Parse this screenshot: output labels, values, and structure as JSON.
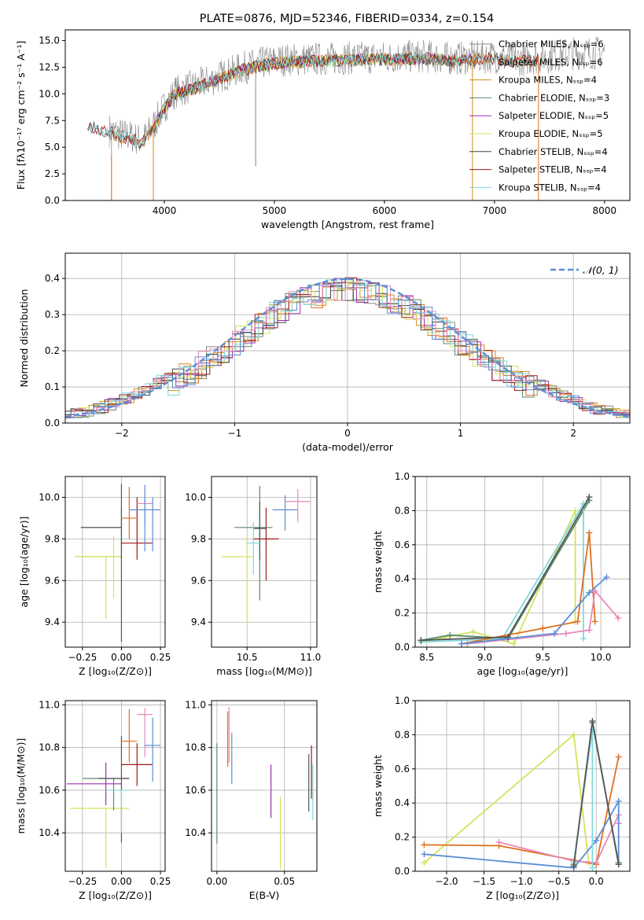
{
  "figure_title": "PLATE=0876, MJD=52346, FIBERID=0334, z=0.154",
  "colors": {
    "Chabrier MILES": "#888888",
    "Salpeter MILES": "#e07020",
    "Kroupa MILES": "#d58a1a",
    "Chabrier ELODIE": "#5a8a6a",
    "Salpeter ELODIE": "#9b30b0",
    "Kroupa ELODIE": "#d4e35a",
    "Chabrier STELIB": "#444444",
    "Salpeter STELIB": "#a01818",
    "Kroupa STELIB": "#7fd8dd",
    "gaussian": "#5b8ed6",
    "blue": "#5b8ed6",
    "orange": "#e07020",
    "pink": "#e889b8",
    "green": "#5a8a6a",
    "lime": "#d4e35a",
    "cyan": "#7fd8dd",
    "gray": "#555555"
  },
  "chart_data": [
    {
      "type": "line",
      "title": "PLATE=0876, MJD=52346, FIBERID=0334, z=0.154",
      "xlabel": "wavelength [Angstrom, rest frame]",
      "ylabel": "Flux [fλ10⁻¹⁷ erg cm⁻² s⁻¹ A⁻¹]",
      "xlim": [
        3100,
        8230
      ],
      "ylim": [
        0,
        16
      ],
      "xticks": [
        4000,
        5000,
        6000,
        7000,
        8000
      ],
      "yticks": [
        0.0,
        2.5,
        5.0,
        7.5,
        10.0,
        12.5,
        15.0
      ],
      "ytick_labels": [
        "0.0",
        "2.5",
        "5.0",
        "7.5",
        "10.0",
        "12.5",
        "15.0"
      ],
      "legend_position": "right",
      "legend": [
        "Chabrier MILES, Nₛₛₚ=6",
        "Salpeter MILES, Nₛₛₚ=6",
        "Kroupa MILES, Nₛₛₚ=4",
        "Chabrier ELODIE, Nₛₛₚ=3",
        "Salpeter ELODIE, Nₛₛₚ=5",
        "Kroupa ELODIE, Nₛₛₚ=5",
        "Chabrier STELIB, Nₛₛₚ=4",
        "Salpeter STELIB, Nₛₛₚ=4",
        "Kroupa STELIB, Nₛₛₚ=4"
      ],
      "series": [
        {
          "color_key": "Chabrier MILES",
          "range": [
            3500,
            8000
          ]
        },
        {
          "color_key": "Salpeter MILES",
          "range": [
            3520,
            7400
          ]
        },
        {
          "color_key": "Kroupa MILES",
          "range": [
            3900,
            6800
          ]
        },
        {
          "color_key": "Chabrier ELODIE",
          "range": [
            3900,
            6800
          ]
        },
        {
          "color_key": "Salpeter ELODIE",
          "range": [
            3900,
            6800
          ]
        },
        {
          "color_key": "Kroupa ELODIE",
          "range": [
            3900,
            6800
          ]
        },
        {
          "color_key": "Chabrier STELIB",
          "range": [
            3300,
            7400
          ]
        },
        {
          "color_key": "Salpeter STELIB",
          "range": [
            3300,
            7400
          ]
        },
        {
          "color_key": "Kroupa STELIB",
          "range": [
            3300,
            7400
          ]
        }
      ],
      "continuum": [
        [
          3300,
          7.2
        ],
        [
          3500,
          6.6
        ],
        [
          3600,
          6.2
        ],
        [
          3700,
          6.0
        ],
        [
          3800,
          5.6
        ],
        [
          3900,
          7.0
        ],
        [
          4000,
          8.8
        ],
        [
          4100,
          10.2
        ],
        [
          4300,
          10.8
        ],
        [
          4500,
          11.6
        ],
        [
          4700,
          12.4
        ],
        [
          4900,
          12.9
        ],
        [
          5100,
          13.2
        ],
        [
          5500,
          13.3
        ],
        [
          5800,
          13.4
        ],
        [
          6000,
          13.4
        ],
        [
          6200,
          13.5
        ],
        [
          6400,
          13.5
        ],
        [
          6600,
          13.3
        ],
        [
          6800,
          13.4
        ],
        [
          7000,
          13.5
        ],
        [
          7200,
          13.2
        ],
        [
          7400,
          13.4
        ],
        [
          7700,
          13.8
        ],
        [
          8000,
          13.9
        ]
      ]
    },
    {
      "type": "step",
      "xlabel": "(data-model)/error",
      "ylabel": "Normed distribution",
      "xlim": [
        -2.5,
        2.5
      ],
      "ylim": [
        0,
        0.47
      ],
      "xticks": [
        -2,
        -1,
        0,
        1,
        2
      ],
      "xtick_labels": [
        "−2",
        "−1",
        "0",
        "1",
        "2"
      ],
      "yticks": [
        0.0,
        0.1,
        0.2,
        0.3,
        0.4
      ],
      "ytick_labels": [
        "0.0",
        "0.1",
        "0.2",
        "0.3",
        "0.4"
      ],
      "legend": "𝒩(0, 1)",
      "legend_position": "top-right",
      "bin_width": 0.1,
      "series_colors": [
        "#888888",
        "#e07020",
        "#d58a1a",
        "#5a8a6a",
        "#9b30b0",
        "#d4e35a",
        "#444444",
        "#a01818",
        "#7fd8dd",
        "#5b8ed6",
        "#e889b8"
      ]
    },
    {
      "type": "scatter",
      "xlabel": "Z [log₁₀(Z/Z⊙)]",
      "ylabel": "age  [log₁₀(age/yr)]",
      "xlim": [
        -0.36,
        0.28
      ],
      "ylim": [
        9.28,
        10.1
      ],
      "xticks": [
        -0.25,
        0.0,
        0.25
      ],
      "xtick_labels": [
        "−0.25",
        "0.00",
        "0.25"
      ],
      "yticks": [
        9.4,
        9.6,
        9.8,
        10.0
      ],
      "ytick_labels": [
        "9.4",
        "9.6",
        "9.8",
        "10.0"
      ],
      "points": [
        {
          "x": -0.05,
          "xerr": [
            0.25,
            0.05
          ],
          "y": 9.715,
          "yerr": [
            0.2,
            0.1
          ],
          "color": "lime"
        },
        {
          "x": -0.1,
          "xerr": [
            0.2,
            0.1
          ],
          "y": 9.715,
          "yerr": [
            0.3,
            0.0
          ],
          "color": "lime"
        },
        {
          "x": 0.0,
          "xerr": [
            0.26,
            0.0
          ],
          "y": 9.855,
          "yerr": [
            0.15,
            0.1
          ],
          "color": "green"
        },
        {
          "x": 0.0,
          "xerr": [
            0.26,
            0.0
          ],
          "y": 9.855,
          "yerr": [
            0.55,
            0.21
          ],
          "color": "gray"
        },
        {
          "x": 0.1,
          "xerr": [
            0.1,
            0.1
          ],
          "y": 9.78,
          "yerr": [
            0.08,
            0.22
          ],
          "color": "salpeter"
        },
        {
          "x": 0.05,
          "xerr": [
            0.05,
            0.05
          ],
          "y": 9.9,
          "yerr": [
            0.1,
            0.15
          ],
          "color": "orange"
        },
        {
          "x": 0.15,
          "xerr": [
            0.05,
            0.05
          ],
          "y": 9.97,
          "yerr": [
            0.1,
            0.04
          ],
          "color": "pink"
        },
        {
          "x": 0.2,
          "xerr": [
            0.05,
            0.05
          ],
          "y": 9.94,
          "yerr": [
            0.2,
            0.06
          ],
          "color": "blue"
        },
        {
          "x": 0.15,
          "xerr": [
            0.1,
            0.0
          ],
          "y": 9.94,
          "yerr": [
            0.2,
            0.12
          ],
          "color": "blue"
        }
      ]
    },
    {
      "type": "scatter",
      "xlabel": "mass [log₁₀(M/M⊙)]",
      "xlim": [
        10.22,
        11.05
      ],
      "ylim": [
        9.28,
        10.1
      ],
      "xticks": [
        10.5,
        11.0
      ],
      "xtick_labels": [
        "10.5",
        "11.0"
      ],
      "yticks": [
        9.4,
        9.6,
        9.8,
        10.0
      ],
      "ytick_labels": [
        "9.4",
        "9.6",
        "9.8",
        "10.0"
      ],
      "points": [
        {
          "x": 10.5,
          "xerr": [
            0.2,
            0.05
          ],
          "y": 9.715,
          "yerr": [
            0.33,
            0.1
          ],
          "color": "lime"
        },
        {
          "x": 10.6,
          "xerr": [
            0.2,
            0.1
          ],
          "y": 9.855,
          "yerr": [
            0.35,
            0.2
          ],
          "color": "green"
        },
        {
          "x": 10.65,
          "xerr": [
            0.1,
            0.1
          ],
          "y": 9.8,
          "yerr": [
            0.2,
            0.15
          ],
          "color": "salpeter"
        },
        {
          "x": 10.6,
          "xerr": [
            0.05,
            0.05
          ],
          "y": 9.85,
          "yerr": [
            0.15,
            0.13
          ],
          "color": "gray"
        },
        {
          "x": 10.55,
          "xerr": [
            0.05,
            0.05
          ],
          "y": 9.78,
          "yerr": [
            0.15,
            0.1
          ],
          "color": "cyan"
        },
        {
          "x": 10.8,
          "xerr": [
            0.1,
            0.1
          ],
          "y": 9.94,
          "yerr": [
            0.1,
            0.07
          ],
          "color": "blue"
        },
        {
          "x": 10.9,
          "xerr": [
            0.1,
            0.1
          ],
          "y": 9.98,
          "yerr": [
            0.1,
            0.06
          ],
          "color": "pink"
        }
      ]
    },
    {
      "type": "line",
      "xlabel": "age  [log₁₀(age/yr)]",
      "ylabel": "mass weight",
      "xlim": [
        8.4,
        10.25
      ],
      "ylim": [
        0,
        1.0
      ],
      "xticks": [
        8.5,
        9.0,
        9.5,
        10.0
      ],
      "xtick_labels": [
        "8.5",
        "9.0",
        "9.5",
        "10.0"
      ],
      "yticks": [
        0.0,
        0.2,
        0.4,
        0.6,
        0.8,
        1.0
      ],
      "ytick_labels": [
        "0.0",
        "0.2",
        "0.4",
        "0.6",
        "0.8",
        "1.0"
      ],
      "series": [
        {
          "color": "lime",
          "x": [
            8.45,
            8.9,
            9.25,
            9.78,
            9.78
          ],
          "y": [
            0.03,
            0.09,
            0.02,
            0.8,
            0.15
          ]
        },
        {
          "color": "green",
          "x": [
            8.45,
            8.7,
            9.2,
            9.9
          ],
          "y": [
            0.04,
            0.07,
            0.05,
            0.86
          ]
        },
        {
          "color": "cyan",
          "x": [
            8.45,
            9.15,
            9.85,
            9.85
          ],
          "y": [
            0.03,
            0.05,
            0.84,
            0.05
          ]
        },
        {
          "color": "orange",
          "x": [
            8.8,
            9.5,
            9.8,
            9.9,
            9.95
          ],
          "y": [
            0.02,
            0.11,
            0.15,
            0.67,
            0.15
          ]
        },
        {
          "color": "pink",
          "x": [
            8.85,
            9.7,
            9.9,
            9.95,
            10.15
          ],
          "y": [
            0.02,
            0.08,
            0.1,
            0.33,
            0.17
          ]
        },
        {
          "color": "blue",
          "x": [
            8.8,
            9.6,
            9.9,
            10.05
          ],
          "y": [
            0.02,
            0.08,
            0.32,
            0.41
          ]
        },
        {
          "color": "gray",
          "x": [
            8.45,
            9.2,
            9.9
          ],
          "y": [
            0.04,
            0.06,
            0.88
          ]
        }
      ]
    },
    {
      "type": "scatter",
      "xlabel": "Z [log₁₀(Z/Z⊙)]",
      "ylabel": "mass [log₁₀(M/M⊙)]",
      "xlim": [
        -0.36,
        0.28
      ],
      "ylim": [
        10.22,
        11.02
      ],
      "xticks": [
        -0.25,
        0.0,
        0.25
      ],
      "xtick_labels": [
        "−0.25",
        "0.00",
        "0.25"
      ],
      "yticks": [
        10.4,
        10.6,
        10.8,
        11.0
      ],
      "ytick_labels": [
        "10.4",
        "10.6",
        "10.8",
        "11.0"
      ],
      "points": [
        {
          "x": -0.1,
          "xerr": [
            0.23,
            0.15
          ],
          "y": 10.515,
          "yerr": [
            0.28,
            0.0
          ],
          "color": "lime"
        },
        {
          "x": -0.1,
          "xerr": [
            0.25,
            0.1
          ],
          "y": 10.63,
          "yerr": [
            0.1,
            0.1
          ],
          "color": "purple"
        },
        {
          "x": -0.05,
          "xerr": [
            0.2,
            0.1
          ],
          "y": 10.655,
          "yerr": [
            0.15,
            0.0
          ],
          "color": "green"
        },
        {
          "x": 0.0,
          "xerr": [
            0.15,
            0.05
          ],
          "y": 10.655,
          "yerr": [
            0.3,
            0.2
          ],
          "color": "gray"
        },
        {
          "x": 0.0,
          "xerr": [
            0.1,
            0.05
          ],
          "y": 10.6,
          "yerr": [
            0.2,
            0.0
          ],
          "color": "cyan"
        },
        {
          "x": 0.1,
          "xerr": [
            0.1,
            0.1
          ],
          "y": 10.72,
          "yerr": [
            0.1,
            0.1
          ],
          "color": "salpeter"
        },
        {
          "x": 0.05,
          "xerr": [
            0.05,
            0.05
          ],
          "y": 10.83,
          "yerr": [
            0.1,
            0.15
          ],
          "color": "orange"
        },
        {
          "x": 0.15,
          "xerr": [
            0.05,
            0.05
          ],
          "y": 10.955,
          "yerr": [
            0.2,
            0.03
          ],
          "color": "pink"
        },
        {
          "x": 0.2,
          "xerr": [
            0.05,
            0.05
          ],
          "y": 10.81,
          "yerr": [
            0.17,
            0.13
          ],
          "color": "blue"
        }
      ]
    },
    {
      "type": "scatter",
      "xlabel": "E(B-V)",
      "xlim": [
        -0.004,
        0.074
      ],
      "ylim": [
        10.22,
        11.02
      ],
      "xticks": [
        0.0,
        0.05
      ],
      "xtick_labels": [
        "0.00",
        "0.05"
      ],
      "yticks": [
        10.4,
        10.6,
        10.8,
        11.0
      ],
      "ytick_labels": [
        "10.4",
        "10.6",
        "10.8",
        "11.0"
      ],
      "points": [
        {
          "x": 0.0,
          "y": 10.6,
          "yerr": [
            0.25,
            0.22
          ],
          "color": "green"
        },
        {
          "x": 0.008,
          "y": 10.85,
          "yerr": [
            0.14,
            0.12
          ],
          "color": "orange"
        },
        {
          "x": 0.009,
          "y": 10.85,
          "yerr": [
            0.12,
            0.14
          ],
          "color": "pink"
        },
        {
          "x": 0.011,
          "y": 10.75,
          "yerr": [
            0.12,
            0.12
          ],
          "color": "blue"
        },
        {
          "x": 0.04,
          "y": 10.6,
          "yerr": [
            0.13,
            0.12
          ],
          "color": "purple"
        },
        {
          "x": 0.047,
          "y": 10.4,
          "yerr": [
            0.17,
            0.17
          ],
          "color": "lime"
        },
        {
          "x": 0.068,
          "y": 10.62,
          "yerr": [
            0.12,
            0.15
          ],
          "color": "gray"
        },
        {
          "x": 0.07,
          "y": 10.68,
          "yerr": [
            0.12,
            0.13
          ],
          "color": "salpeter"
        },
        {
          "x": 0.071,
          "y": 10.58,
          "yerr": [
            0.12,
            0.14
          ],
          "color": "cyan"
        }
      ]
    },
    {
      "type": "line",
      "xlabel": "Z [log₁₀(Z/Z⊙)]",
      "ylabel": "mass weight",
      "xlim": [
        -2.42,
        0.45
      ],
      "ylim": [
        0,
        1.0
      ],
      "xticks": [
        -2.0,
        -1.5,
        -1.0,
        -0.5,
        0.0
      ],
      "xtick_labels": [
        "−2.0",
        "−1.5",
        "−1.0",
        "−0.5",
        "0.0"
      ],
      "yticks": [
        0.0,
        0.2,
        0.4,
        0.6,
        0.8,
        1.0
      ],
      "ytick_labels": [
        "0.0",
        "0.2",
        "0.4",
        "0.6",
        "0.8",
        "1.0"
      ],
      "series": [
        {
          "color": "lime",
          "x": [
            -2.3,
            -0.3,
            -0.1,
            0.0
          ],
          "y": [
            0.05,
            0.8,
            0.05,
            0.04
          ]
        },
        {
          "color": "orange",
          "x": [
            -2.3,
            -1.3,
            0.0,
            0.3
          ],
          "y": [
            0.155,
            0.15,
            0.04,
            0.67
          ]
        },
        {
          "color": "pink",
          "x": [
            -1.3,
            -0.3,
            0.0,
            0.3,
            0.3
          ],
          "y": [
            0.17,
            0.06,
            0.05,
            0.33,
            0.28
          ]
        },
        {
          "color": "blue",
          "x": [
            -2.3,
            -0.3,
            0.0,
            0.3,
            0.3
          ],
          "y": [
            0.1,
            0.02,
            0.18,
            0.41,
            0.05
          ]
        },
        {
          "color": "green",
          "x": [
            -0.3,
            -0.05,
            0.3
          ],
          "y": [
            0.04,
            0.87,
            0.05
          ]
        },
        {
          "color": "cyan",
          "x": [
            -0.3,
            -0.05,
            -0.05
          ],
          "y": [
            0.05,
            0.83,
            0.02
          ]
        },
        {
          "color": "gray",
          "x": [
            -0.3,
            -0.05,
            0.3
          ],
          "y": [
            0.03,
            0.88,
            0.04
          ]
        }
      ]
    }
  ]
}
